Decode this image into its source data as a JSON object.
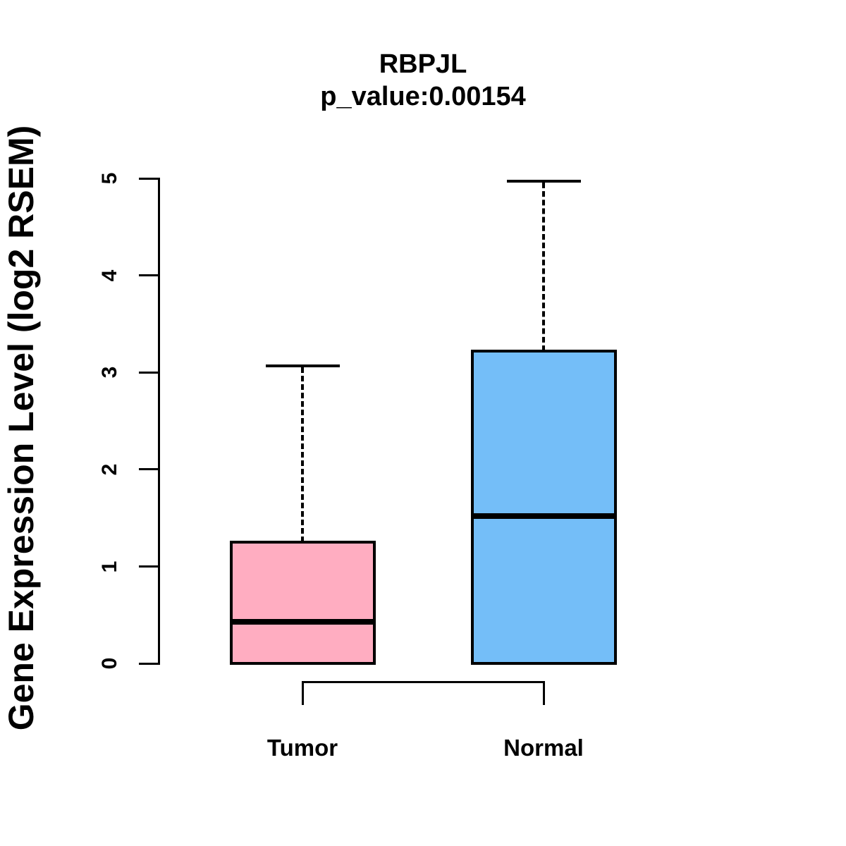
{
  "chart_data": {
    "type": "boxplot",
    "title": "RBPJL",
    "subtitle": "p_value:0.00154",
    "ylabel": "Gene Expression Level (log2 RSEM)",
    "xlabel": "",
    "ylim": [
      0,
      5
    ],
    "yticks": [
      0,
      1,
      2,
      3,
      4,
      5
    ],
    "grid": false,
    "background_color": "#FFFFFF",
    "line_color": "#000000",
    "categories": [
      "Tumor",
      "Normal"
    ],
    "series": [
      {
        "name": "Tumor",
        "color": "#FFADC1",
        "whisker_low": 0,
        "q1": 0,
        "median": 0.43,
        "q3": 1.25,
        "whisker_high": 3.07
      },
      {
        "name": "Normal",
        "color": "#74BEF8",
        "whisker_low": 0,
        "q1": 0,
        "median": 1.52,
        "q3": 3.22,
        "whisker_high": 4.97
      }
    ],
    "comparison_bracket": {
      "connects": [
        "Tumor",
        "Normal"
      ]
    }
  }
}
